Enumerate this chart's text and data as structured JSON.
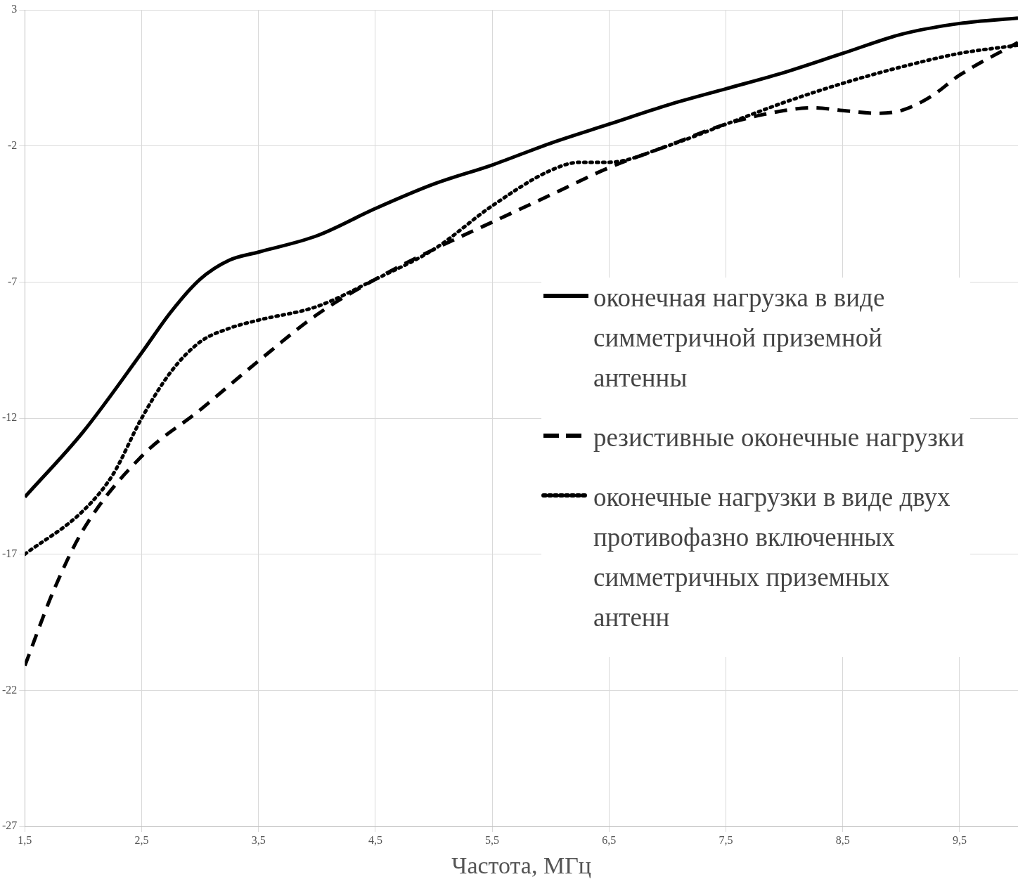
{
  "chart_data": {
    "type": "line",
    "xlabel": "Частота, МГц",
    "xlim": [
      1.5,
      10
    ],
    "xticks": [
      {
        "value": 1.5,
        "label": "1,5"
      },
      {
        "value": 2.5,
        "label": "2,5"
      },
      {
        "value": 3.5,
        "label": "3,5"
      },
      {
        "value": 4.5,
        "label": "4,5"
      },
      {
        "value": 5.5,
        "label": "5,5"
      },
      {
        "value": 6.5,
        "label": "6,5"
      },
      {
        "value": 7.5,
        "label": "7,5"
      },
      {
        "value": 8.5,
        "label": "8,5"
      },
      {
        "value": 9.5,
        "label": "9,5"
      }
    ],
    "ylim": [
      -27,
      3
    ],
    "yticks": [
      -27,
      -22,
      -17,
      -12,
      -7,
      -2,
      3
    ],
    "grid": true,
    "legend": "right",
    "marker": "none",
    "series": [
      {
        "name": "оконечная нагрузка в виде симметричной приземной антенны",
        "color": "#000000",
        "line_style": "solid",
        "x": [
          1.5,
          2,
          2.5,
          2.75,
          3,
          3.25,
          3.5,
          4,
          4.5,
          5,
          5.5,
          6,
          6.5,
          7,
          7.5,
          8,
          8.5,
          9,
          9.5,
          10
        ],
        "values": [
          -14.9,
          -12.5,
          -9.6,
          -8.1,
          -6.9,
          -6.2,
          -5.9,
          -5.3,
          -4.3,
          -3.4,
          -2.7,
          -1.9,
          -1.2,
          -0.5,
          0.1,
          0.7,
          1.4,
          2.1,
          2.5,
          2.7
        ]
      },
      {
        "name": "резистивные оконечные нагрузки",
        "color": "#000000",
        "line_style": "dashed",
        "x": [
          1.5,
          1.75,
          2,
          2.5,
          3,
          3.5,
          4,
          4.5,
          5,
          5.5,
          6,
          6.5,
          7,
          7.5,
          8,
          8.25,
          8.5,
          8.8,
          9,
          9.25,
          9.5,
          10
        ],
        "values": [
          -21.1,
          -18.3,
          -16.1,
          -13.4,
          -11.7,
          -9.9,
          -8.2,
          -6.9,
          -5.8,
          -4.8,
          -3.8,
          -2.8,
          -2,
          -1.2,
          -0.7,
          -0.6,
          -0.7,
          -0.8,
          -0.7,
          -0.2,
          0.6,
          1.8
        ]
      },
      {
        "name": "оконечные нагрузки в виде двух противофазно включенных симметричных приземных антенн",
        "color": "#000000",
        "line_style": "dotted",
        "x": [
          1.5,
          2,
          2.25,
          2.5,
          2.75,
          3,
          3.25,
          3.5,
          4,
          4.5,
          5,
          5.5,
          6,
          6.25,
          6.5,
          7,
          7.5,
          8,
          8.5,
          9,
          9.5,
          10
        ],
        "values": [
          -17,
          -15.4,
          -14.1,
          -12,
          -10.3,
          -9.2,
          -8.7,
          -8.4,
          -7.9,
          -6.9,
          -5.8,
          -4.2,
          -2.9,
          -2.6,
          -2.6,
          -2,
          -1.2,
          -0.4,
          0.3,
          0.9,
          1.4,
          1.7
        ]
      }
    ]
  }
}
